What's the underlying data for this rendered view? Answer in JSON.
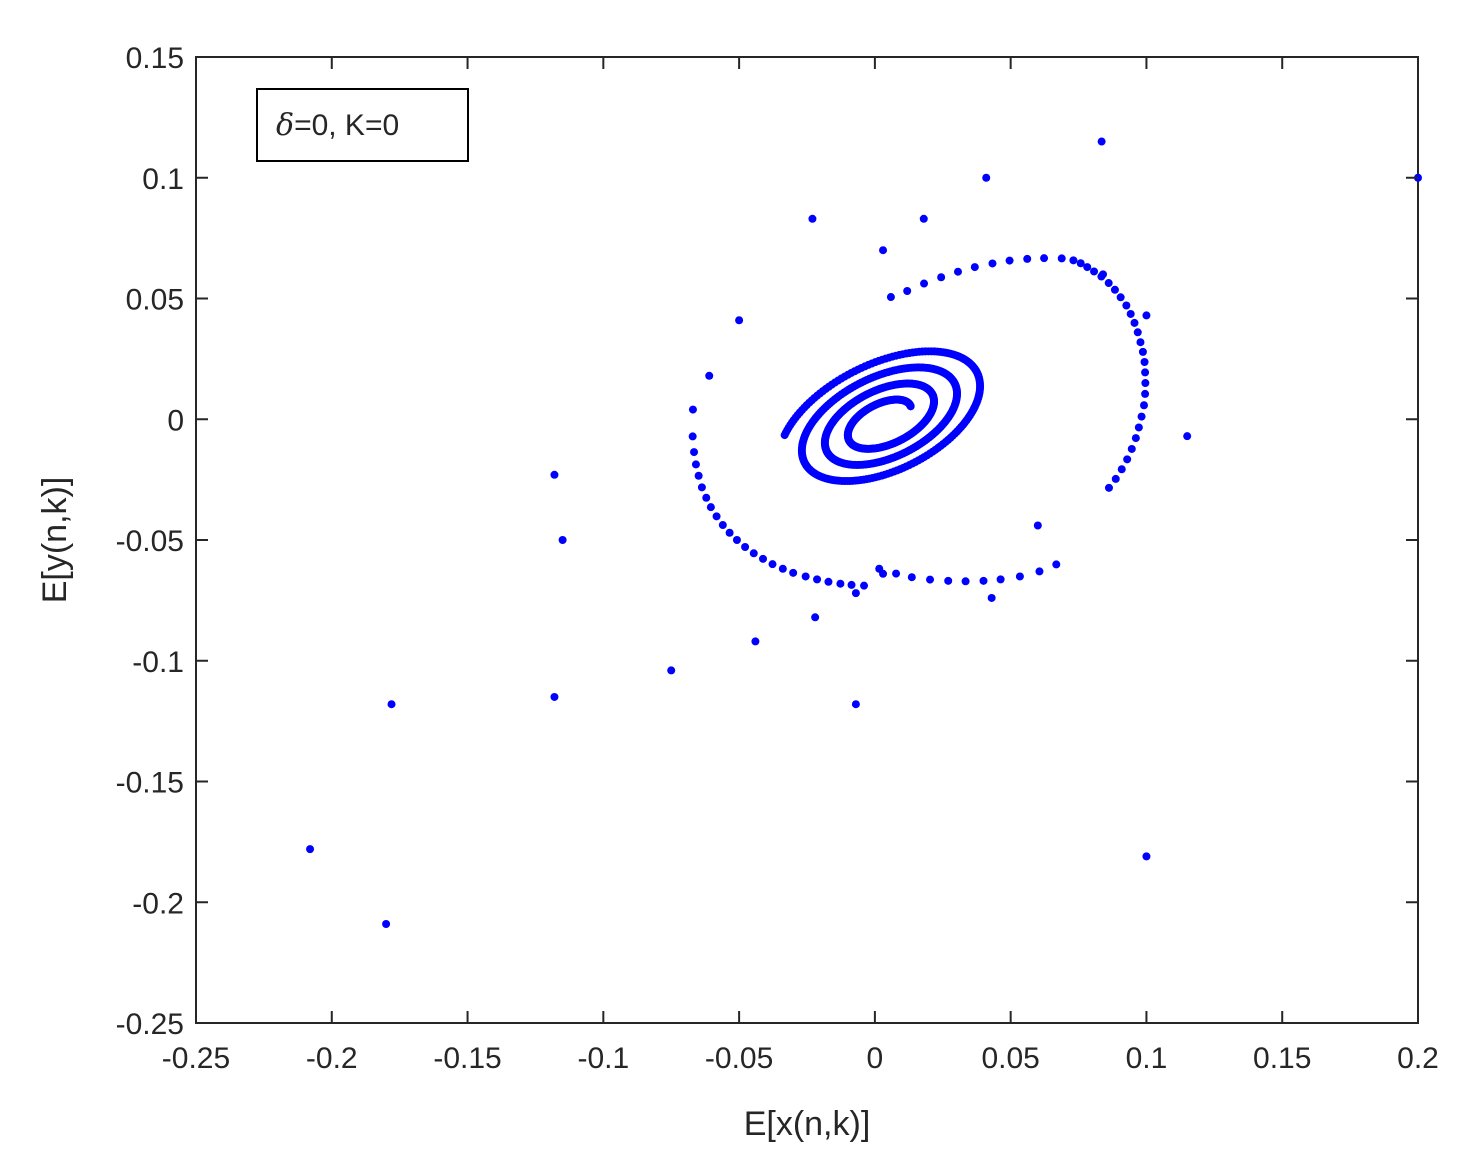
{
  "chart_data": {
    "type": "scatter",
    "title": "",
    "xlabel": "E[x(n,k)]",
    "ylabel": "E[y(n,k)]",
    "xlim": [
      -0.25,
      0.2
    ],
    "ylim": [
      -0.25,
      0.15
    ],
    "xticks": [
      -0.25,
      -0.2,
      -0.15,
      -0.1,
      -0.05,
      0,
      0.05,
      0.1,
      0.15,
      0.2
    ],
    "yticks": [
      -0.25,
      -0.2,
      -0.15,
      -0.1,
      -0.05,
      0,
      0.05,
      0.1,
      0.15
    ],
    "xtick_labels": [
      "-0.25",
      "-0.2",
      "-0.15",
      "-0.1",
      "-0.05",
      "0",
      "0.05",
      "0.1",
      "0.15",
      "0.2"
    ],
    "ytick_labels": [
      "-0.25",
      "-0.2",
      "-0.15",
      "-0.1",
      "-0.05",
      "0",
      "0.05",
      "0.1",
      "0.15"
    ],
    "grid": false,
    "legend": {
      "placement": "top-left",
      "symbol": "δ",
      "text": "=0, K=0"
    },
    "marker_color": "#0000ff",
    "series": [
      {
        "marker": "dot",
        "points": [
          [
            0.2,
            0.1
          ],
          [
            0.0835,
            0.115
          ],
          [
            -0.208,
            -0.178
          ],
          [
            -0.18,
            -0.209
          ],
          [
            -0.178,
            -0.118
          ],
          [
            -0.118,
            -0.115
          ],
          [
            0.1,
            -0.181
          ],
          [
            0.041,
            0.1
          ],
          [
            -0.023,
            0.083
          ],
          [
            0.018,
            0.083
          ],
          [
            0.003,
            0.07
          ],
          [
            0.084,
            0.06
          ],
          [
            0.1,
            0.043
          ],
          [
            0.115,
            -0.007
          ],
          [
            0.06,
            -0.044
          ],
          [
            0.043,
            -0.074
          ],
          [
            0.003,
            -0.064
          ],
          [
            -0.007,
            -0.072
          ],
          [
            -0.022,
            -0.082
          ],
          [
            -0.044,
            -0.092
          ],
          [
            -0.075,
            -0.104
          ],
          [
            -0.007,
            -0.118
          ],
          [
            -0.118,
            -0.023
          ],
          [
            -0.115,
            -0.05
          ],
          [
            -0.05,
            0.041
          ],
          [
            -0.061,
            0.018
          ],
          [
            -0.067,
            0.004
          ],
          [
            -0.0671,
            -0.0071
          ],
          [
            -0.0666,
            -0.0136
          ],
          [
            -0.0659,
            -0.0187
          ],
          [
            -0.0649,
            -0.0234
          ],
          [
            -0.0637,
            -0.0282
          ],
          [
            -0.0621,
            -0.0325
          ],
          [
            -0.0604,
            -0.0364
          ],
          [
            -0.0583,
            -0.0402
          ],
          [
            -0.056,
            -0.0438
          ],
          [
            -0.0535,
            -0.047
          ],
          [
            -0.0508,
            -0.05
          ],
          [
            -0.0478,
            -0.0529
          ],
          [
            -0.0446,
            -0.0555
          ],
          [
            -0.0412,
            -0.0578
          ],
          [
            -0.0377,
            -0.06
          ],
          [
            -0.0339,
            -0.0619
          ],
          [
            -0.0301,
            -0.0636
          ],
          [
            -0.0255,
            -0.0651
          ],
          [
            -0.0213,
            -0.0663
          ],
          [
            -0.0171,
            -0.0673
          ],
          [
            -0.0127,
            -0.0681
          ],
          [
            -0.0086,
            -0.0686
          ],
          [
            -0.004,
            -0.0689
          ],
          [
            0.0016,
            -0.0619
          ],
          [
            0.0078,
            -0.0639
          ],
          [
            0.0136,
            -0.0654
          ],
          [
            0.0203,
            -0.0664
          ],
          [
            0.027,
            -0.0669
          ],
          [
            0.0334,
            -0.0671
          ],
          [
            0.04,
            -0.0669
          ],
          [
            0.0463,
            -0.0663
          ],
          [
            0.0534,
            -0.0651
          ],
          [
            0.0606,
            -0.063
          ],
          [
            0.0668,
            -0.0601
          ],
          [
            0.0059,
            0.0506
          ],
          [
            0.0119,
            0.0531
          ],
          [
            0.0181,
            0.0562
          ],
          [
            0.0244,
            0.0588
          ],
          [
            0.0306,
            0.0611
          ],
          [
            0.0368,
            0.063
          ],
          [
            0.0433,
            0.0645
          ],
          [
            0.0496,
            0.0657
          ],
          [
            0.0561,
            0.0664
          ],
          [
            0.0623,
            0.0667
          ],
          [
            0.0688,
            0.0666
          ],
          [
            0.0731,
            0.0658
          ],
          [
            0.0758,
            0.0646
          ],
          [
            0.0782,
            0.063
          ],
          [
            0.0807,
            0.0612
          ],
          [
            0.0834,
            0.0591
          ],
          [
            0.0861,
            0.0564
          ],
          [
            0.0884,
            0.0536
          ],
          [
            0.0905,
            0.0505
          ],
          [
            0.0926,
            0.0471
          ],
          [
            0.0942,
            0.0436
          ],
          [
            0.0956,
            0.0399
          ],
          [
            0.0968,
            0.036
          ],
          [
            0.0978,
            0.0319
          ],
          [
            0.0987,
            0.0279
          ],
          [
            0.0993,
            0.0237
          ],
          [
            0.0995,
            0.0194
          ],
          [
            0.0996,
            0.015
          ],
          [
            0.0995,
            0.0105
          ],
          [
            0.0991,
            0.0058
          ],
          [
            0.0982,
            0.0011
          ],
          [
            0.0972,
            -0.0034
          ],
          [
            0.0961,
            -0.0078
          ],
          [
            0.0946,
            -0.0123
          ],
          [
            0.0929,
            -0.0166
          ],
          [
            0.0909,
            -0.0207
          ],
          [
            0.0887,
            -0.0247
          ],
          [
            0.0862,
            -0.0284
          ]
        ]
      }
    ],
    "spiral": {
      "center": [
        0.0038,
        -0.0004
      ],
      "turns": 3.4,
      "point_count": 620
    }
  }
}
